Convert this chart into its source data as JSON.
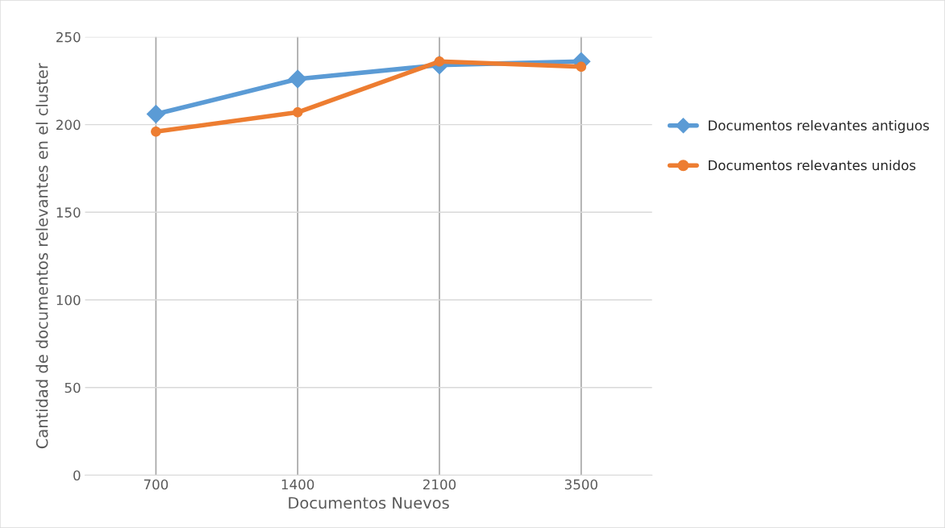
{
  "chart_data": {
    "type": "line",
    "xlabel": "Documentos Nuevos",
    "ylabel": "Cantidad de documentos relevantes en el cluster",
    "categories": [
      "700",
      "1400",
      "2100",
      "3500"
    ],
    "series": [
      {
        "name": "Documentos relevantes antiguos",
        "color": "#5b9bd5",
        "marker": "diamond",
        "values": [
          206,
          226,
          234,
          236
        ]
      },
      {
        "name": "Documentos relevantes unidos",
        "color": "#ed7d31",
        "marker": "circle",
        "values": [
          196,
          207,
          236,
          233
        ]
      }
    ],
    "ylim": [
      0,
      250
    ],
    "yticks": [
      0,
      50,
      100,
      150,
      200,
      250
    ],
    "grid": true,
    "legend": "right",
    "line_style": "solid"
  }
}
